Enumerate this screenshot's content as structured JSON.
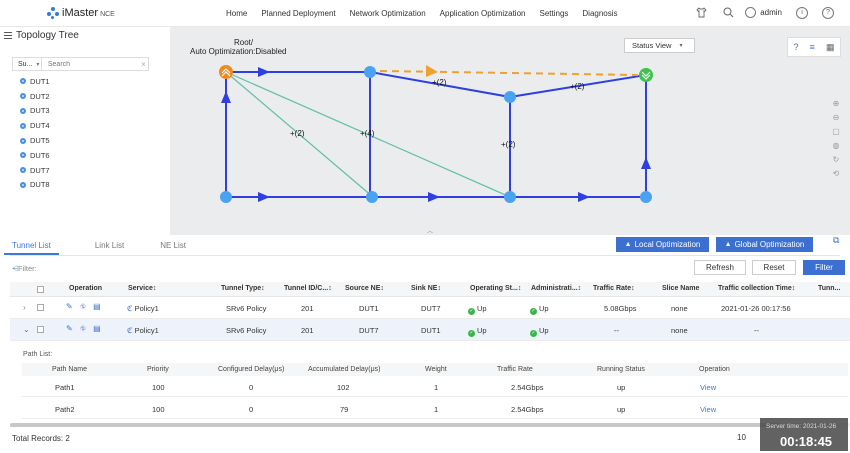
{
  "nav": {
    "logo": "iMaster",
    "logo_suffix": "NCE",
    "menu": [
      "Home",
      "Planned Deployment",
      "Network Optimization",
      "Application Optimization",
      "Settings",
      "Diagnosis"
    ],
    "user": "admin"
  },
  "tree": {
    "title": "Topology Tree",
    "select_value": "Su...",
    "search_placeholder": "Search",
    "items": [
      "DUT1",
      "DUT2",
      "DUT3",
      "DUT4",
      "DUT5",
      "DUT6",
      "DUT7",
      "DUT8"
    ]
  },
  "topology": {
    "root_label_1": "Root/",
    "root_label_2": "Auto Optimization:Disabled",
    "status_view": "Status View",
    "edge_labels": [
      "+(2)",
      "+(2)",
      "+(2)",
      "+(4)",
      "+(2)"
    ],
    "colors": {
      "link": "#2f3fe0",
      "tunnel": "#5fbfa6",
      "dashed": "#f0a030",
      "node": "#4aa3f0",
      "root": "#f08a20",
      "sink": "#3cc34a"
    }
  },
  "tabs": [
    "Tunnel List",
    "Link List",
    "NE List"
  ],
  "actions": {
    "local": "Local Optimization",
    "global": "Global Optimization"
  },
  "filter": {
    "label": "Filter:",
    "refresh": "Refresh",
    "reset": "Reset",
    "filter": "Filter"
  },
  "table": {
    "headers": [
      "Operation",
      "Service↕",
      "Tunnel Type↕",
      "Tunnel ID/C...↕",
      "Source NE↕",
      "Sink NE↕",
      "Operating St...↕",
      "Administrati...↕",
      "Traffic Rate↕",
      "Slice Name",
      "Traffic collection Time↕",
      "Tunn..."
    ],
    "rows": [
      {
        "service": "Policy1",
        "type": "SRv6 Policy",
        "id": "201",
        "source": "DUT1",
        "sink": "DUT7",
        "op": "Up",
        "admin": "Up",
        "rate": "5.08Gbps",
        "slice": "none",
        "time": "2021-01-26 00:17:56"
      },
      {
        "service": "Policy1",
        "type": "SRv6 Policy",
        "id": "201",
        "source": "DUT7",
        "sink": "DUT1",
        "op": "Up",
        "admin": "Up",
        "rate": "--",
        "slice": "none",
        "time": "--"
      }
    ]
  },
  "pathlist": {
    "title": "Path List:",
    "headers": [
      "Path Name",
      "Priority",
      "Configured Delay(μs)",
      "Accumulated Delay(μs)",
      "Weight",
      "Traffic Rate",
      "Running Status",
      "Operation"
    ],
    "rows": [
      {
        "name": "Path1",
        "priority": "100",
        "configured": "0",
        "accumulated": "102",
        "weight": "1",
        "rate": "2.54Gbps",
        "status": "up",
        "op": "View"
      },
      {
        "name": "Path2",
        "priority": "100",
        "configured": "0",
        "accumulated": "79",
        "weight": "1",
        "rate": "2.54Gbps",
        "status": "up",
        "op": "View"
      }
    ]
  },
  "footer": {
    "total": "Total Records: 2",
    "page_size": "10",
    "server_time_label": "Server time: 2021-01-26",
    "server_time": "00:18:45"
  }
}
